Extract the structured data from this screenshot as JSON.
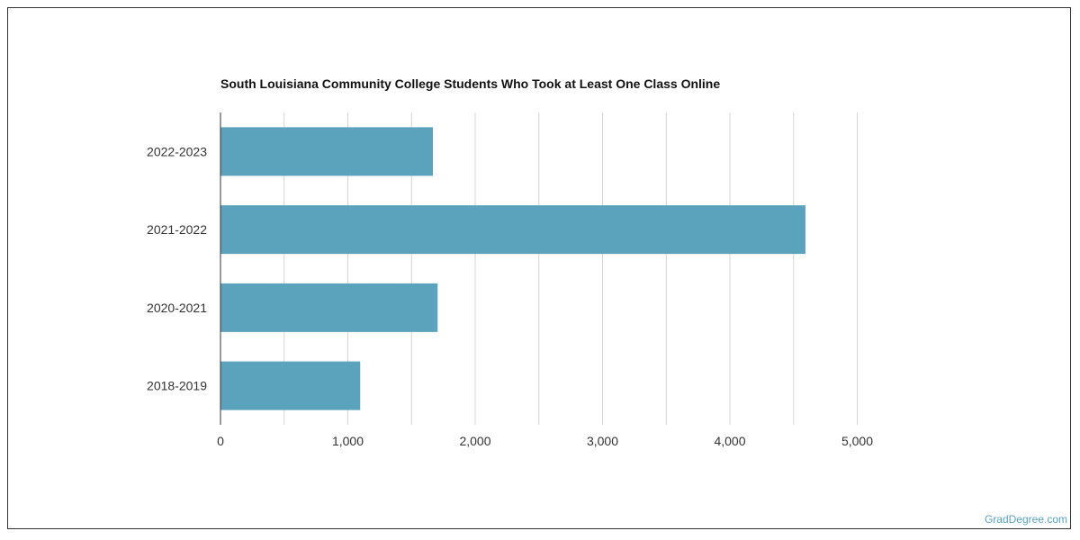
{
  "chart_data": {
    "type": "bar",
    "orientation": "horizontal",
    "title": "South Louisiana Community College Students Who Took at Least One Class Online",
    "categories": [
      "2022-2023",
      "2021-2022",
      "2020-2021",
      "2018-2019"
    ],
    "values": [
      1668,
      4593,
      1705,
      1097
    ],
    "xlim": [
      0,
      5000
    ],
    "x_ticks": [
      0,
      1000,
      2000,
      3000,
      4000,
      5000
    ],
    "x_tick_labels": [
      "0",
      "1,000",
      "2,000",
      "3,000",
      "4,000",
      "5,000"
    ],
    "grid": "vertical",
    "bar_color": "#5ba2bd",
    "grid_color": "#d4d4d4",
    "xlabel": "",
    "ylabel": ""
  },
  "footer": {
    "source": "GradDegree.com"
  },
  "colors": {
    "watermark": "#5ba3bf",
    "title": "#111111",
    "axis_text": "#333333"
  }
}
